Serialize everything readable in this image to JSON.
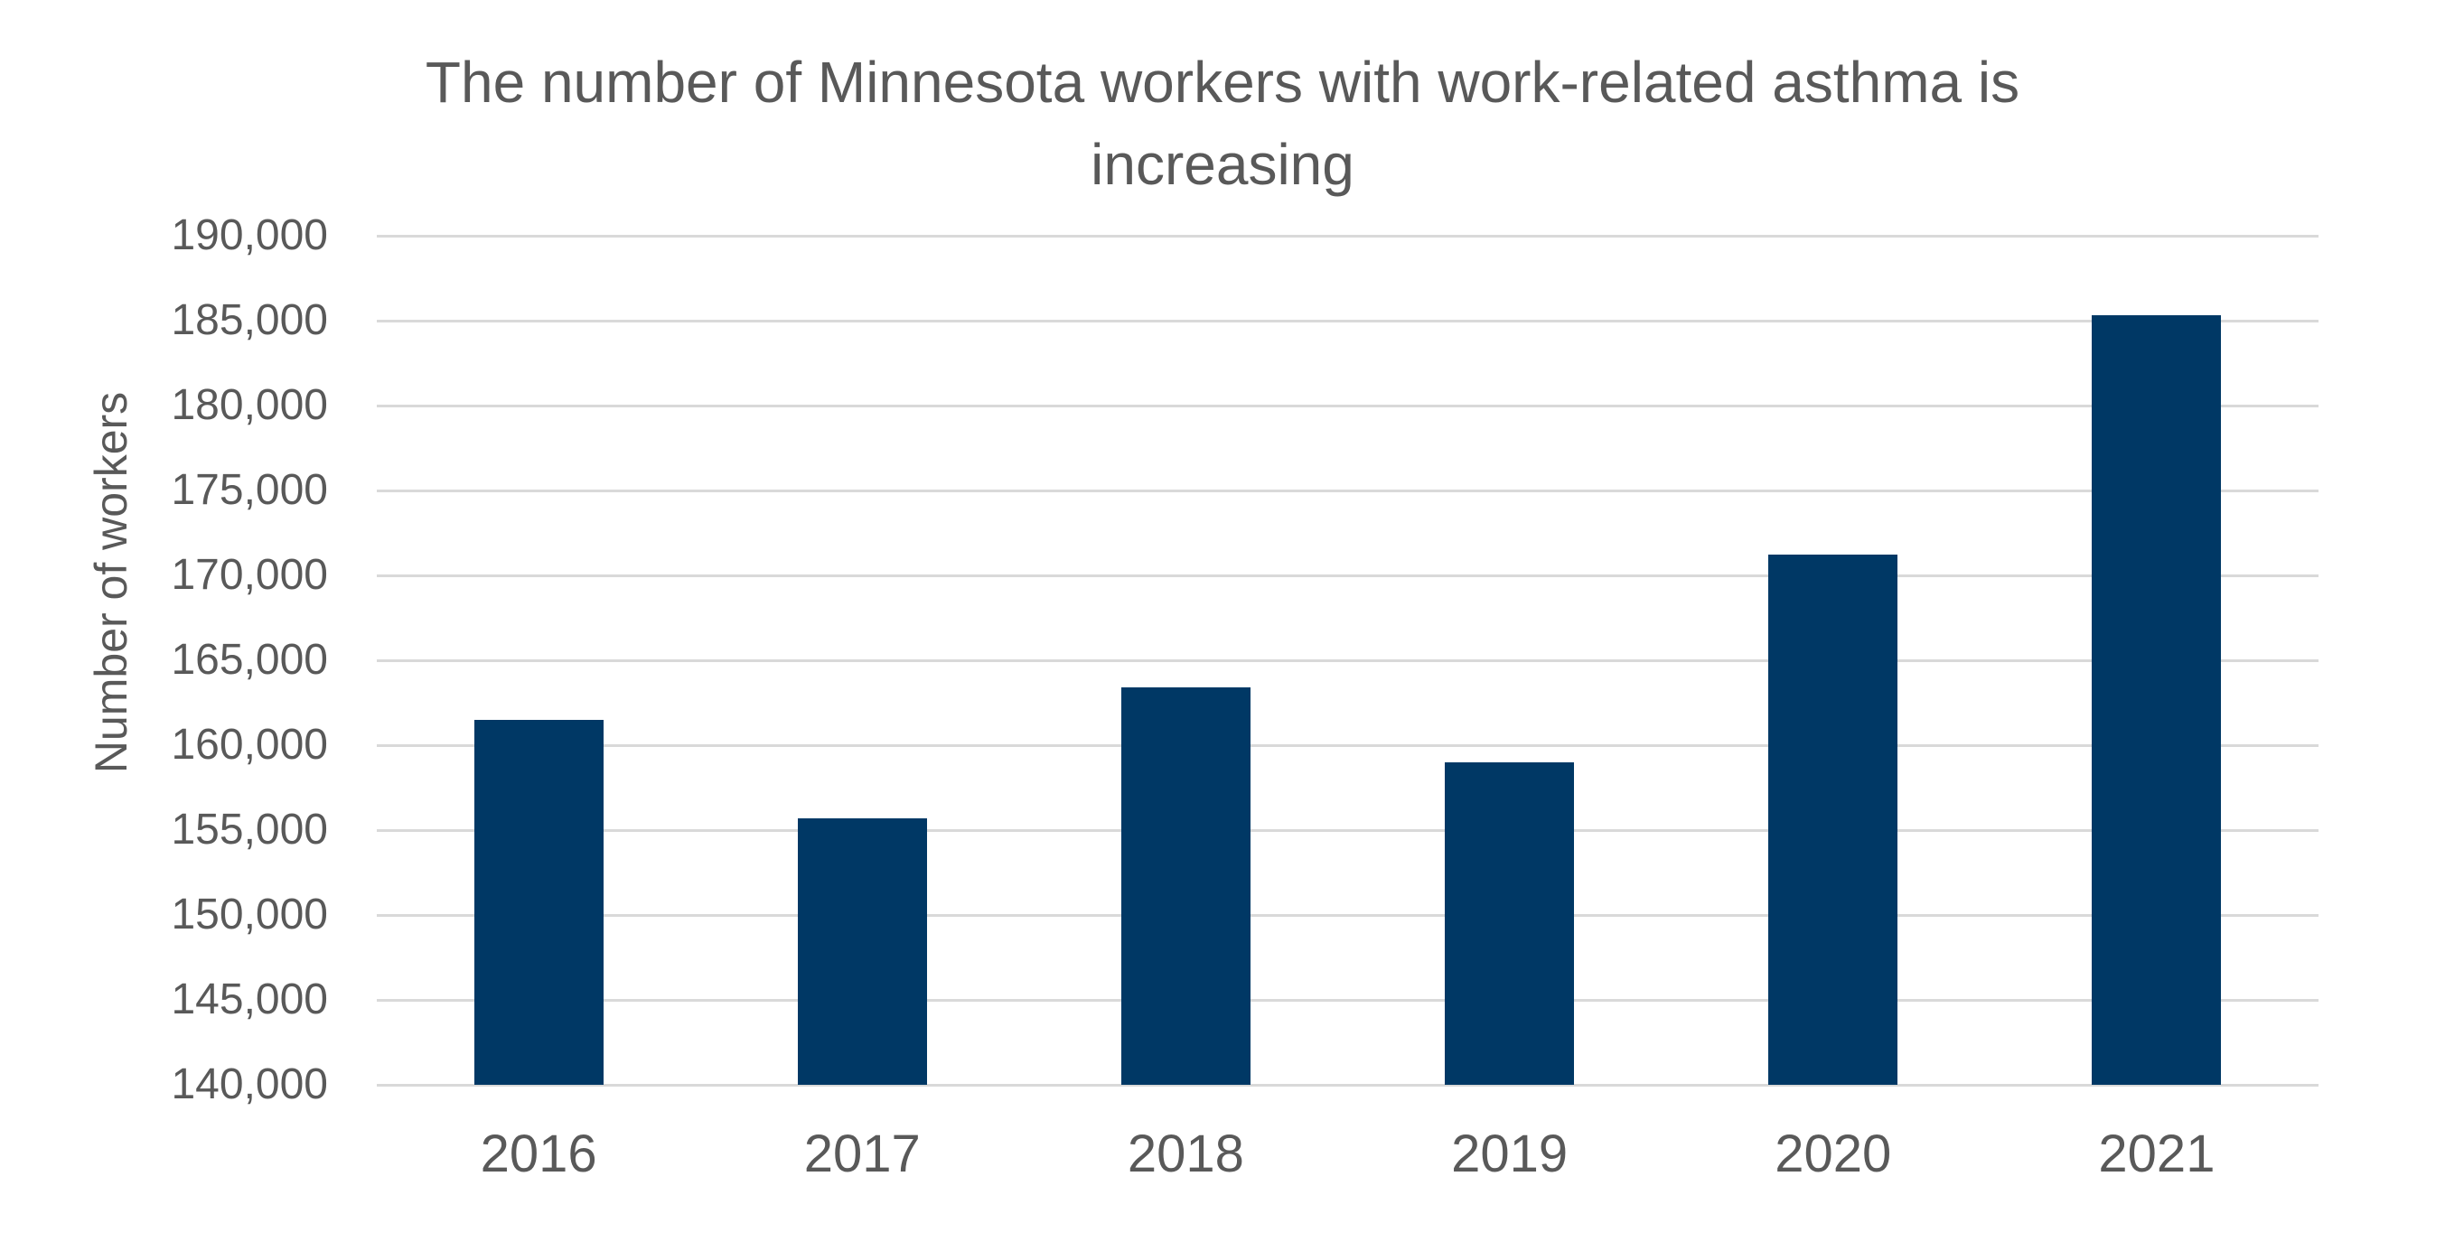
{
  "chart_data": {
    "type": "bar",
    "title": "The number of Minnesota workers with work-related asthma is increasing",
    "categories": [
      "2016",
      "2017",
      "2018",
      "2019",
      "2020",
      "2021"
    ],
    "values": [
      161500,
      155700,
      163400,
      159000,
      171200,
      185300
    ],
    "xlabel": "",
    "ylabel": "Number of workers",
    "ylim": [
      140000,
      190000
    ],
    "ytick_step": 5000,
    "ytick_labels": [
      "140,000",
      "145,000",
      "150,000",
      "155,000",
      "160,000",
      "165,000",
      "170,000",
      "175,000",
      "180,000",
      "185,000",
      "190,000"
    ],
    "grid": "horizontal",
    "legend": "none",
    "colors": {
      "bar": "#003865",
      "gridline": "#D9D9D9",
      "text": "#595959",
      "background": "#FFFFFF"
    }
  }
}
